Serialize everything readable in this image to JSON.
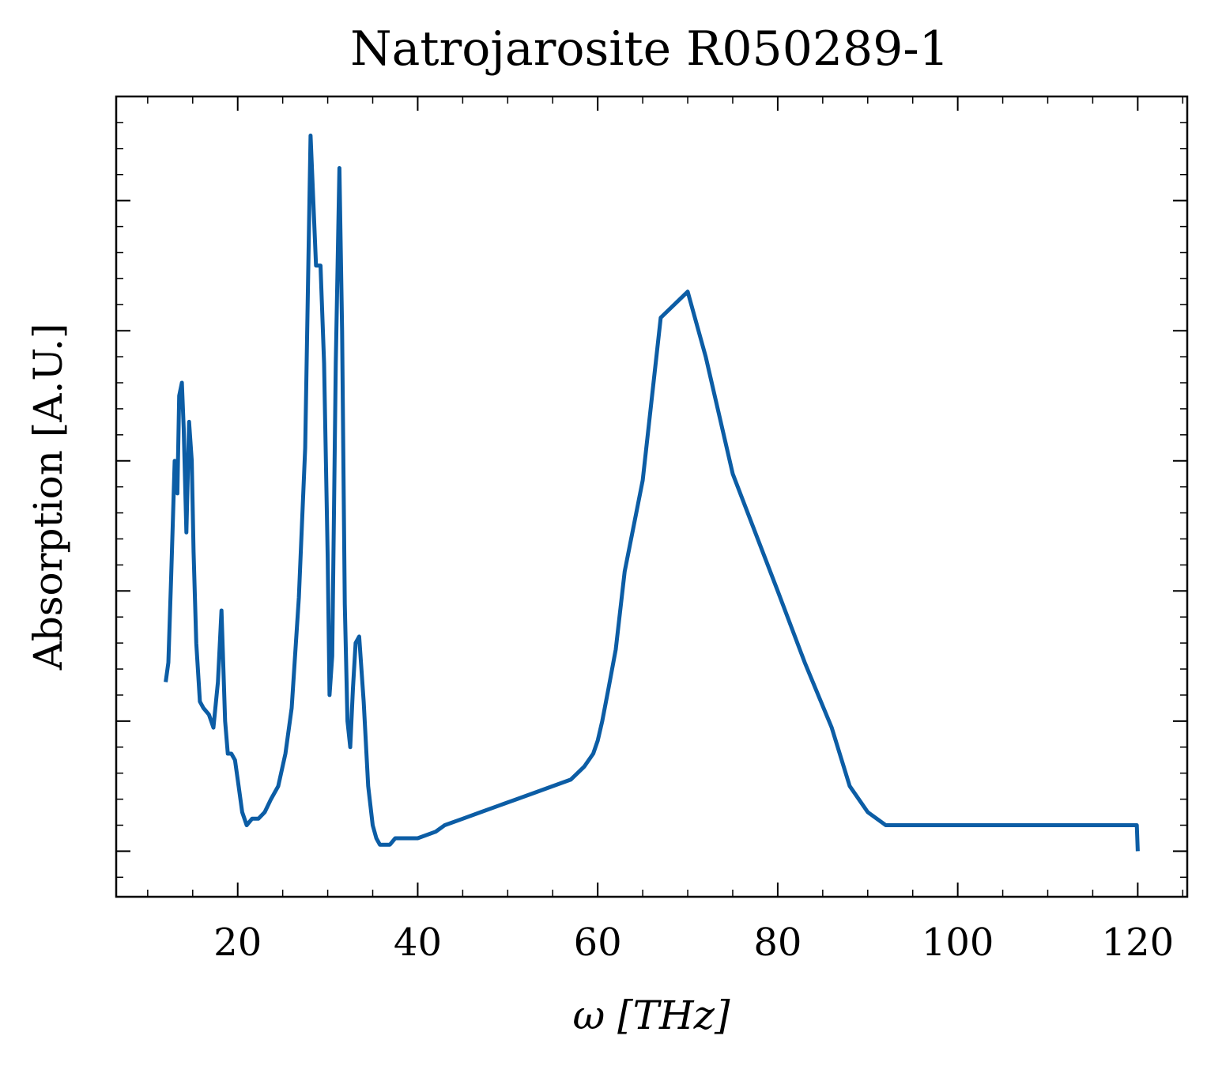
{
  "chart_data": {
    "type": "line",
    "title": "Natrojarosite R050289-1",
    "xlabel": "ω [THz]",
    "ylabel": "Absorption [A.U.]",
    "xlim": [
      6.5,
      125.5
    ],
    "ylim": [
      -0.07,
      1.16
    ],
    "x_ticks": [
      20,
      40,
      60,
      80,
      100,
      120
    ],
    "x_tick_labels": [
      "20",
      "40",
      "60",
      "80",
      "100",
      "120"
    ],
    "y_tick_labels_shown": false,
    "grid": false,
    "legend": "none",
    "line_color": "#0C5DA5",
    "series": [
      {
        "x": [
          12.0,
          12.3,
          12.6,
          13.0,
          13.3,
          13.5,
          13.8,
          14.0,
          14.3,
          14.6,
          14.9,
          15.1,
          15.4,
          15.8,
          16.2,
          16.8,
          17.3,
          17.8,
          18.2,
          18.6,
          18.9,
          19.3,
          19.7,
          20.1,
          20.5,
          21.0,
          21.6,
          22.3,
          23.0,
          23.7,
          24.5,
          25.3,
          26.0,
          26.8,
          27.5,
          28.1,
          28.7,
          29.2,
          29.6,
          30.0,
          30.2,
          30.5,
          30.9,
          31.3,
          31.6,
          31.9,
          32.2,
          32.5,
          32.8,
          33.1,
          33.5,
          34.0,
          34.5,
          35.0,
          35.4,
          35.8,
          36.3,
          36.9,
          37.5,
          38.2,
          39.0,
          40.0,
          42.0,
          43.0,
          45.0,
          47.0,
          49.0,
          51.0,
          53.0,
          55.0,
          57.0,
          58.5,
          59.5,
          60.0,
          60.5,
          61.2,
          62.0,
          63.0,
          65.0,
          67.0,
          70.0,
          72.0,
          75.0,
          80.0,
          83.0,
          86.0,
          88.0,
          90.0,
          92.0,
          94.0,
          95.5,
          96.5,
          97.3,
          98.0,
          98.6,
          99.2,
          99.7,
          100.1,
          100.4,
          100.6,
          100.8,
          101.0,
          101.3,
          101.6,
          102.0,
          102.5,
          103.0,
          103.6,
          104.3,
          105.0,
          106.0,
          107.0,
          110.0,
          113.0,
          115.0,
          118.0,
          119.9,
          120.0
        ],
        "y": [
          0.26,
          0.29,
          0.42,
          0.6,
          0.55,
          0.7,
          0.72,
          0.65,
          0.49,
          0.66,
          0.6,
          0.46,
          0.32,
          0.23,
          0.22,
          0.21,
          0.19,
          0.26,
          0.37,
          0.2,
          0.15,
          0.15,
          0.14,
          0.1,
          0.06,
          0.04,
          0.05,
          0.05,
          0.06,
          0.08,
          0.1,
          0.15,
          0.22,
          0.39,
          0.62,
          1.1,
          0.9,
          0.9,
          0.75,
          0.45,
          0.24,
          0.3,
          0.75,
          1.05,
          0.8,
          0.38,
          0.2,
          0.16,
          0.25,
          0.32,
          0.33,
          0.23,
          0.1,
          0.04,
          0.02,
          0.01,
          0.01,
          0.01,
          0.02,
          0.02,
          0.02,
          0.02,
          0.03,
          0.04,
          0.05,
          0.06,
          0.07,
          0.08,
          0.09,
          0.1,
          0.11,
          0.13,
          0.15,
          0.17,
          0.2,
          0.25,
          0.31,
          0.43,
          0.57,
          0.82,
          0.86,
          0.76,
          0.58,
          0.4,
          0.29,
          0.19,
          0.1,
          0.06,
          0.04,
          0.04,
          0.04,
          0.04,
          0.04,
          0.04,
          0.04,
          0.04,
          0.04,
          0.04,
          0.04,
          0.04,
          0.04,
          0.04,
          0.04,
          0.04,
          0.04,
          0.04,
          0.04,
          0.04,
          0.04,
          0.04,
          0.04,
          0.04,
          0.04,
          0.04,
          0.04,
          0.04,
          0.04,
          0.0
        ]
      }
    ]
  }
}
